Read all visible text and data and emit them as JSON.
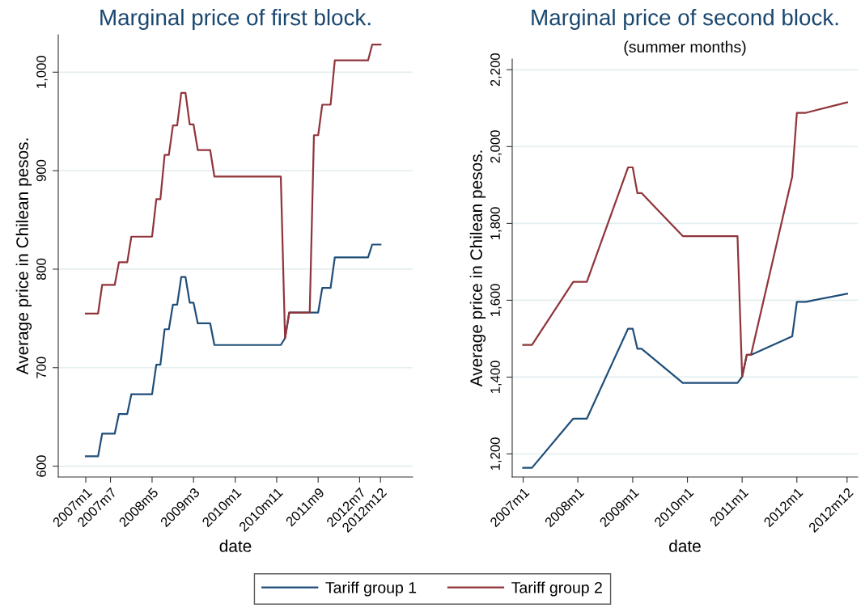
{
  "chart_data": [
    {
      "type": "line",
      "title": "Marginal price of first block.",
      "xlabel": "date",
      "ylabel": "Average price in Chilean pesos.",
      "grid": "y",
      "legend": "bottom",
      "xlim": [
        "2006-06-13",
        "2013-07-25"
      ],
      "ylim": [
        589,
        1038
      ],
      "xticks": [
        {
          "value": "2007-01",
          "label": "2007m1"
        },
        {
          "value": "2007-07",
          "label": "2007m7"
        },
        {
          "value": "2008-05",
          "label": "2008m5"
        },
        {
          "value": "2009-03",
          "label": "2009m3"
        },
        {
          "value": "2010-01",
          "label": "2010m1"
        },
        {
          "value": "2010-11",
          "label": "2010m11"
        },
        {
          "value": "2011-09",
          "label": "2011m9"
        },
        {
          "value": "2012-07",
          "label": "2012m7"
        },
        {
          "value": "2012-12",
          "label": "2012m12"
        }
      ],
      "yticks": [
        {
          "value": 600,
          "label": "600"
        },
        {
          "value": 700,
          "label": "700"
        },
        {
          "value": 800,
          "label": "800"
        },
        {
          "value": 900,
          "label": "900"
        },
        {
          "value": 1000,
          "label": "1,000"
        }
      ],
      "series": [
        {
          "name": "Tariff group 1",
          "color": "#1f4e79",
          "x": [
            "2007-01",
            "2007-04",
            "2007-05",
            "2007-08",
            "2007-09",
            "2007-11",
            "2007-12",
            "2008-05",
            "2008-06",
            "2008-07",
            "2008-08",
            "2008-09",
            "2008-10",
            "2008-11",
            "2008-12",
            "2009-01",
            "2009-02",
            "2009-03",
            "2009-04",
            "2009-07",
            "2009-08",
            "2010-12",
            "2011-01",
            "2011-02",
            "2011-09",
            "2011-10",
            "2011-12",
            "2012-01",
            "2012-09",
            "2012-10",
            "2012-12"
          ],
          "values": [
            610,
            610,
            633,
            633,
            653,
            653,
            673,
            673,
            703,
            703,
            739,
            739,
            764,
            764,
            792,
            792,
            766,
            766,
            745,
            745,
            723,
            723,
            730,
            756,
            756,
            781,
            781,
            812,
            812,
            825,
            825
          ]
        },
        {
          "name": "Tariff group 2",
          "color": "#90353b",
          "x": [
            "2007-01",
            "2007-04",
            "2007-05",
            "2007-08",
            "2007-09",
            "2007-11",
            "2007-12",
            "2008-05",
            "2008-06",
            "2008-07",
            "2008-08",
            "2008-09",
            "2008-10",
            "2008-11",
            "2008-12",
            "2009-01",
            "2009-02",
            "2009-03",
            "2009-04",
            "2009-07",
            "2009-08",
            "2010-12",
            "2011-01",
            "2011-02",
            "2011-07",
            "2011-08",
            "2011-09",
            "2011-10",
            "2011-12",
            "2012-01",
            "2012-09",
            "2012-10",
            "2012-12"
          ],
          "values": [
            755,
            755,
            784,
            784,
            807,
            807,
            833,
            833,
            871,
            871,
            916,
            916,
            946,
            946,
            979,
            979,
            947,
            947,
            921,
            921,
            894,
            894,
            730,
            756,
            756,
            936,
            936,
            967,
            967,
            1012,
            1012,
            1028,
            1028
          ]
        }
      ]
    },
    {
      "type": "line",
      "title": "Marginal price of second block.",
      "subtitle": "(summer months)",
      "xlabel": "date",
      "ylabel": "Average price in Chilean pesos.",
      "grid": "y",
      "xlim": [
        "2006-10-20",
        "2013-02-10"
      ],
      "ylim": [
        1140,
        2228
      ],
      "xticks": [
        {
          "value": "2007-01",
          "label": "2007m1"
        },
        {
          "value": "2008-01",
          "label": "2008m1"
        },
        {
          "value": "2009-01",
          "label": "2009m1"
        },
        {
          "value": "2010-01",
          "label": "2010m1"
        },
        {
          "value": "2011-01",
          "label": "2011m1"
        },
        {
          "value": "2012-01",
          "label": "2012m1"
        },
        {
          "value": "2012-12",
          "label": "2012m12"
        }
      ],
      "yticks": [
        {
          "value": 1200,
          "label": "1,200"
        },
        {
          "value": 1400,
          "label": "1,400"
        },
        {
          "value": 1600,
          "label": "1,600"
        },
        {
          "value": 1800,
          "label": "1,800"
        },
        {
          "value": 2000,
          "label": "2,000"
        },
        {
          "value": 2200,
          "label": "2,200"
        }
      ],
      "series": [
        {
          "color": "#1f4e79",
          "x": [
            "2007-01",
            "2007-03",
            "2007-12",
            "2008-03",
            "2008-12",
            "2009-01",
            "2009-02",
            "2009-03",
            "2009-12",
            "2010-12",
            "2011-01",
            "2011-02",
            "2011-03",
            "2011-12",
            "2012-01",
            "2012-03",
            "2012-12"
          ],
          "values": [
            1164,
            1164,
            1292,
            1292,
            1526,
            1526,
            1474,
            1474,
            1385,
            1385,
            1401,
            1458,
            1458,
            1506,
            1596,
            1596,
            1617
          ]
        },
        {
          "color": "#90353b",
          "x": [
            "2007-01",
            "2007-03",
            "2007-12",
            "2008-03",
            "2008-12",
            "2009-01",
            "2009-02",
            "2009-03",
            "2009-12",
            "2010-12",
            "2011-01",
            "2011-02",
            "2011-03",
            "2011-12",
            "2012-01",
            "2012-03",
            "2012-12"
          ],
          "values": [
            1484,
            1484,
            1648,
            1648,
            1946,
            1946,
            1879,
            1879,
            1767,
            1767,
            1401,
            1458,
            1458,
            1922,
            2088,
            2088,
            2115
          ]
        }
      ]
    }
  ]
}
